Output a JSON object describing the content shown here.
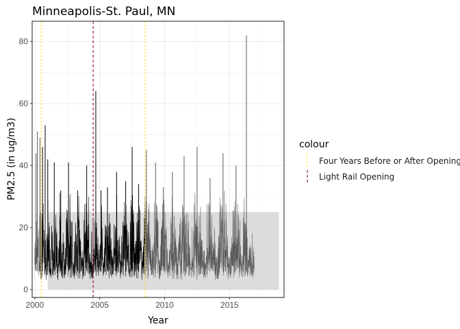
{
  "chart_data": {
    "type": "line",
    "title": "Minneapolis-St. Paul, MN",
    "xlabel": "Year",
    "ylabel": "PM2.5 (in ug/m3)",
    "xlim": [
      1999.8,
      2019.2
    ],
    "ylim": [
      -2.5,
      86.5
    ],
    "x_ticks": [
      2000,
      2005,
      2010,
      2015
    ],
    "x_tick_labels": [
      "2000",
      "2005",
      "2010",
      "2015"
    ],
    "y_ticks": [
      0,
      20,
      40,
      60,
      80
    ],
    "y_tick_labels": [
      "0",
      "20",
      "40",
      "60",
      "80"
    ],
    "grid": true,
    "legend": {
      "title": "colour",
      "placement": "right",
      "entries": [
        {
          "label": "Four Years Before or After Opening",
          "color": "#FFD700",
          "linestyle": "dotted"
        },
        {
          "label": "Light Rail Opening",
          "color": "#A0224C",
          "linestyle": "dashed"
        }
      ]
    },
    "shaded_regions": [
      {
        "x": [
          2001.0,
          2018.8
        ],
        "y": [
          0,
          25
        ],
        "color": "#dcdcdc"
      }
    ],
    "vlines": [
      {
        "x": 2000.5,
        "series": "Four Years Before or After Opening",
        "color": "#FFD700",
        "linestyle": "dotted"
      },
      {
        "x": 2004.5,
        "series": "Light Rail Opening",
        "color": "#A0224C",
        "linestyle": "dashed"
      },
      {
        "x": 2008.5,
        "series": "Four Years Before or After Opening",
        "color": "#FFD700",
        "linestyle": "dotted"
      }
    ],
    "series": [
      {
        "color_inside_window": "#000000",
        "color_outside_window": "#595959",
        "window": [
          2000.5,
          2008.5
        ],
        "x": [
          2000.0,
          2000.05,
          2000.1,
          2000.15,
          2000.2,
          2000.3,
          2000.4,
          2000.5,
          2000.6,
          2000.7,
          2000.8,
          2000.9,
          2001.0,
          2001.2,
          2001.5,
          2001.8,
          2002.0,
          2002.3,
          2002.6,
          2003.0,
          2003.3,
          2003.6,
          2004.0,
          2004.3,
          2004.5,
          2004.6,
          2004.7,
          2004.9,
          2005.1,
          2005.3,
          2005.6,
          2006.0,
          2006.3,
          2006.6,
          2007.0,
          2007.3,
          2007.5,
          2007.7,
          2008.0,
          2008.3,
          2008.6,
          2009.0,
          2009.3,
          2009.6,
          2009.9,
          2010.3,
          2010.6,
          2011.0,
          2011.5,
          2012.0,
          2012.5,
          2013.0,
          2013.5,
          2014.0,
          2014.5,
          2015.0,
          2015.5,
          2016.0,
          2016.3,
          2016.4,
          2016.6,
          2016.9
        ],
        "y": [
          23,
          6,
          44,
          12,
          51,
          8,
          49,
          3,
          46,
          7,
          53,
          4,
          42,
          3,
          41,
          5,
          32,
          3,
          41,
          4,
          32,
          3,
          40,
          5,
          22,
          6,
          64,
          4,
          32,
          4,
          33,
          3,
          38,
          4,
          35,
          3,
          46,
          4,
          34,
          3,
          45,
          4,
          41,
          3,
          33,
          2,
          38,
          3,
          43,
          2,
          46,
          3,
          36,
          2,
          44,
          3,
          40,
          3,
          82,
          2,
          14,
          6
        ]
      }
    ]
  }
}
